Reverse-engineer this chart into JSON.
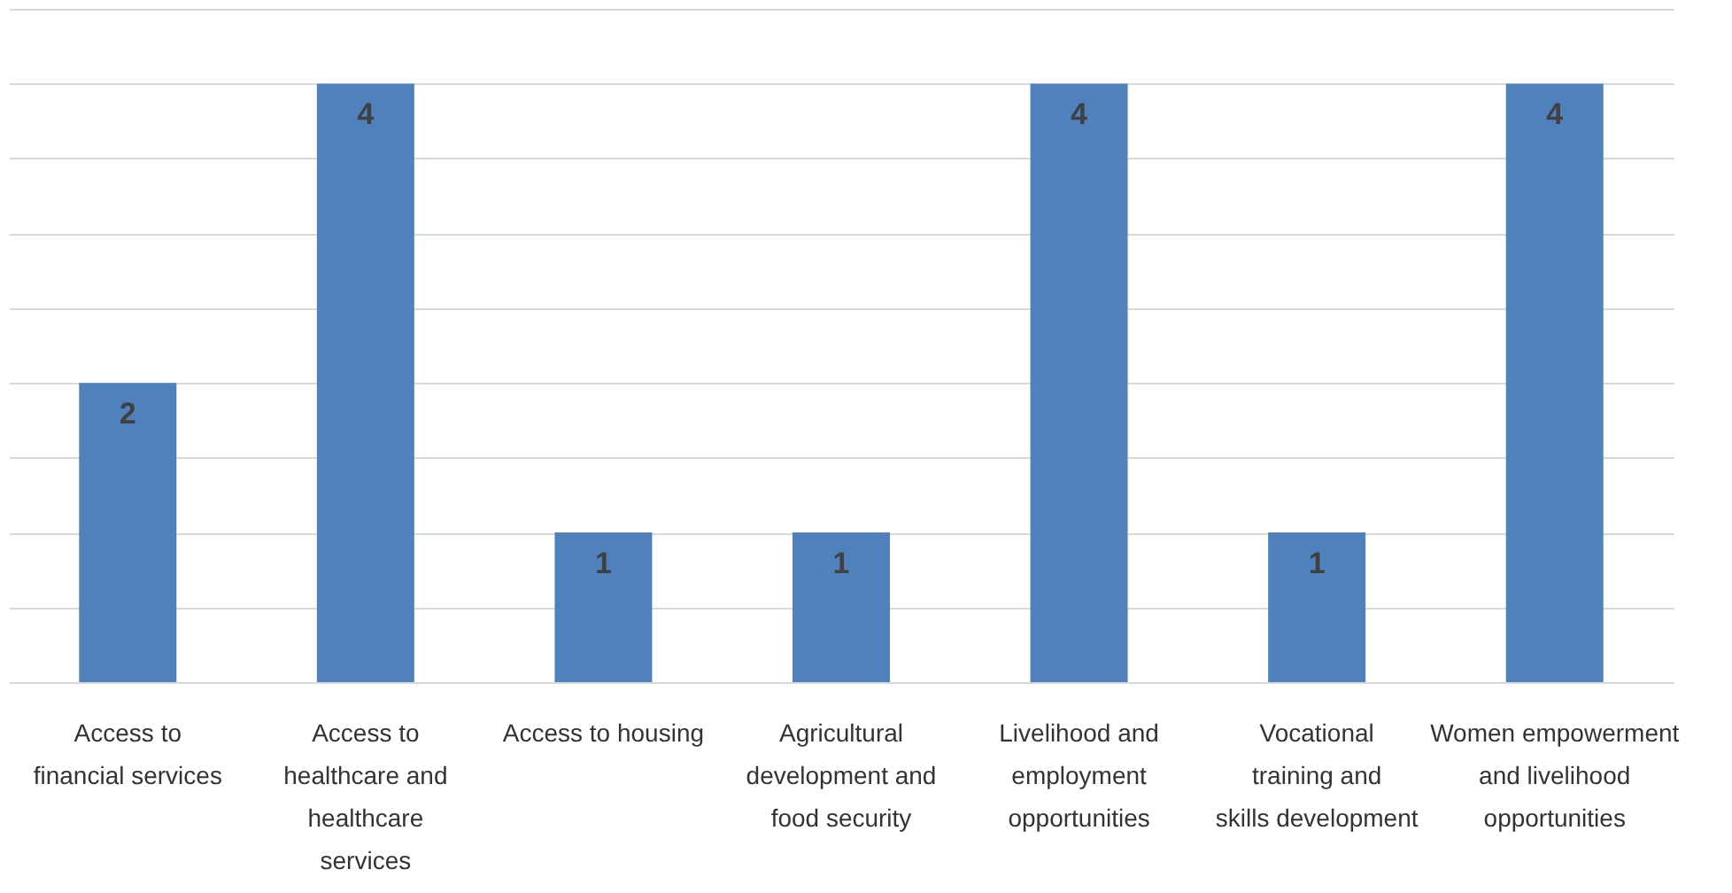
{
  "chart_data": {
    "type": "bar",
    "categories": [
      "Access to financial services",
      "Access to healthcare and healthcare services",
      "Access to housing",
      "Agricultural development and food security",
      "Livelihood and employment opportunities",
      "Vocational training and skills development",
      "Women empowerment and livelihood opportunities"
    ],
    "values": [
      2,
      4,
      1,
      1,
      4,
      1,
      4
    ],
    "color": "#4f81bd",
    "ylim": [
      0,
      4.5
    ],
    "yticks": [
      {
        "value": 0,
        "label": null
      },
      {
        "value": 0.5,
        "label": null
      },
      {
        "value": 1,
        "label": null
      },
      {
        "value": 1.5,
        "label": null
      },
      {
        "value": 2,
        "label": null
      },
      {
        "value": 2.5,
        "label": null
      },
      {
        "value": 3,
        "label": null
      },
      {
        "value": 3.5,
        "label": null
      },
      {
        "value": 4,
        "label": null
      },
      {
        "value": 4.5,
        "label": null
      }
    ],
    "grid": "y",
    "tick_labels": "x",
    "data_labels": true
  }
}
